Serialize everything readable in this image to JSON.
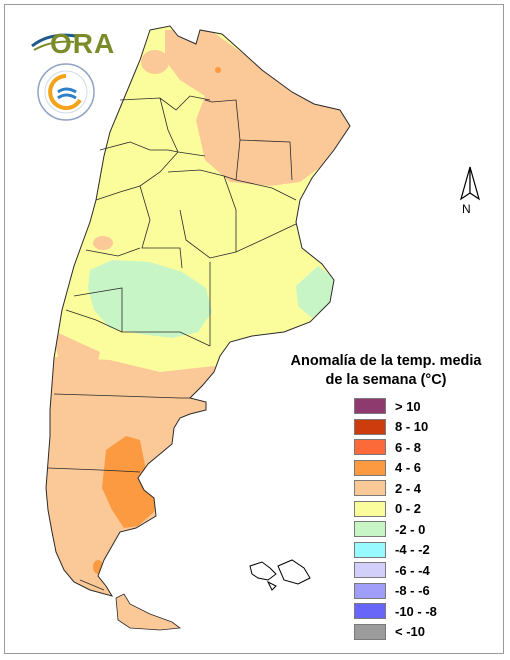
{
  "legend": {
    "title_line1": "Anomalía de la temp. media",
    "title_line2": "de la semana (°C)",
    "items": [
      {
        "label": "> 10",
        "color": "#8e3a6e"
      },
      {
        "label": "8 - 10",
        "color": "#cc3c0c"
      },
      {
        "label": "6 - 8",
        "color": "#fd6a3a"
      },
      {
        "label": "4 - 6",
        "color": "#fb9a40"
      },
      {
        "label": "2 - 4",
        "color": "#fbc898"
      },
      {
        "label": "0 - 2",
        "color": "#fbfd9c"
      },
      {
        "label": "-2 - 0",
        "color": "#c8f5c6"
      },
      {
        "label": "-4 - -2",
        "color": "#98f9ff"
      },
      {
        "label": "-6 - -4",
        "color": "#d2d0fa"
      },
      {
        "label": "-8 - -6",
        "color": "#a09ef9"
      },
      {
        "label": "-10 - -8",
        "color": "#6866f8"
      },
      {
        "label": "< -10",
        "color": "#9c9c9c"
      }
    ]
  },
  "north_arrow": {
    "label": "N"
  },
  "logos": {
    "ora": "ORA",
    "smn_icon": "smn-emblem-icon"
  }
}
